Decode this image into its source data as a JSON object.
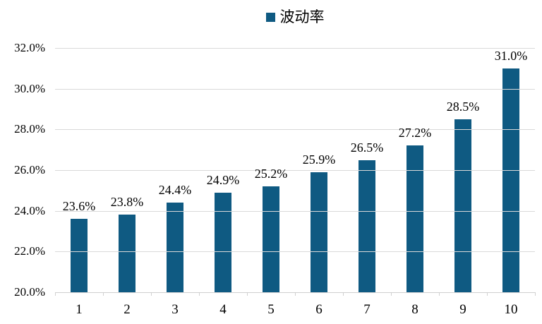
{
  "legend": {
    "label": "波动率",
    "marker_color": "#0f5a82"
  },
  "chart_data": {
    "type": "bar",
    "title": "",
    "xlabel": "",
    "ylabel": "",
    "categories": [
      "1",
      "2",
      "3",
      "4",
      "5",
      "6",
      "7",
      "8",
      "9",
      "10"
    ],
    "series": [
      {
        "name": "波动率",
        "values": [
          23.6,
          23.8,
          24.4,
          24.9,
          25.2,
          25.9,
          26.5,
          27.2,
          28.5,
          31.0
        ],
        "data_labels": [
          "23.6%",
          "23.8%",
          "24.4%",
          "24.9%",
          "25.2%",
          "25.9%",
          "26.5%",
          "27.2%",
          "28.5%",
          "31.0%"
        ]
      }
    ],
    "ylim": [
      20,
      32
    ],
    "ytick_step": 2,
    "ytick_labels": [
      "20.0%",
      "22.0%",
      "24.0%",
      "26.0%",
      "28.0%",
      "30.0%",
      "32.0%"
    ],
    "grid": true,
    "legend_position": "top-center"
  },
  "colors": {
    "bar": "#0f5a82",
    "gridline": "#d9d9d9",
    "axis": "#d0d0d0",
    "text": "#000000"
  }
}
